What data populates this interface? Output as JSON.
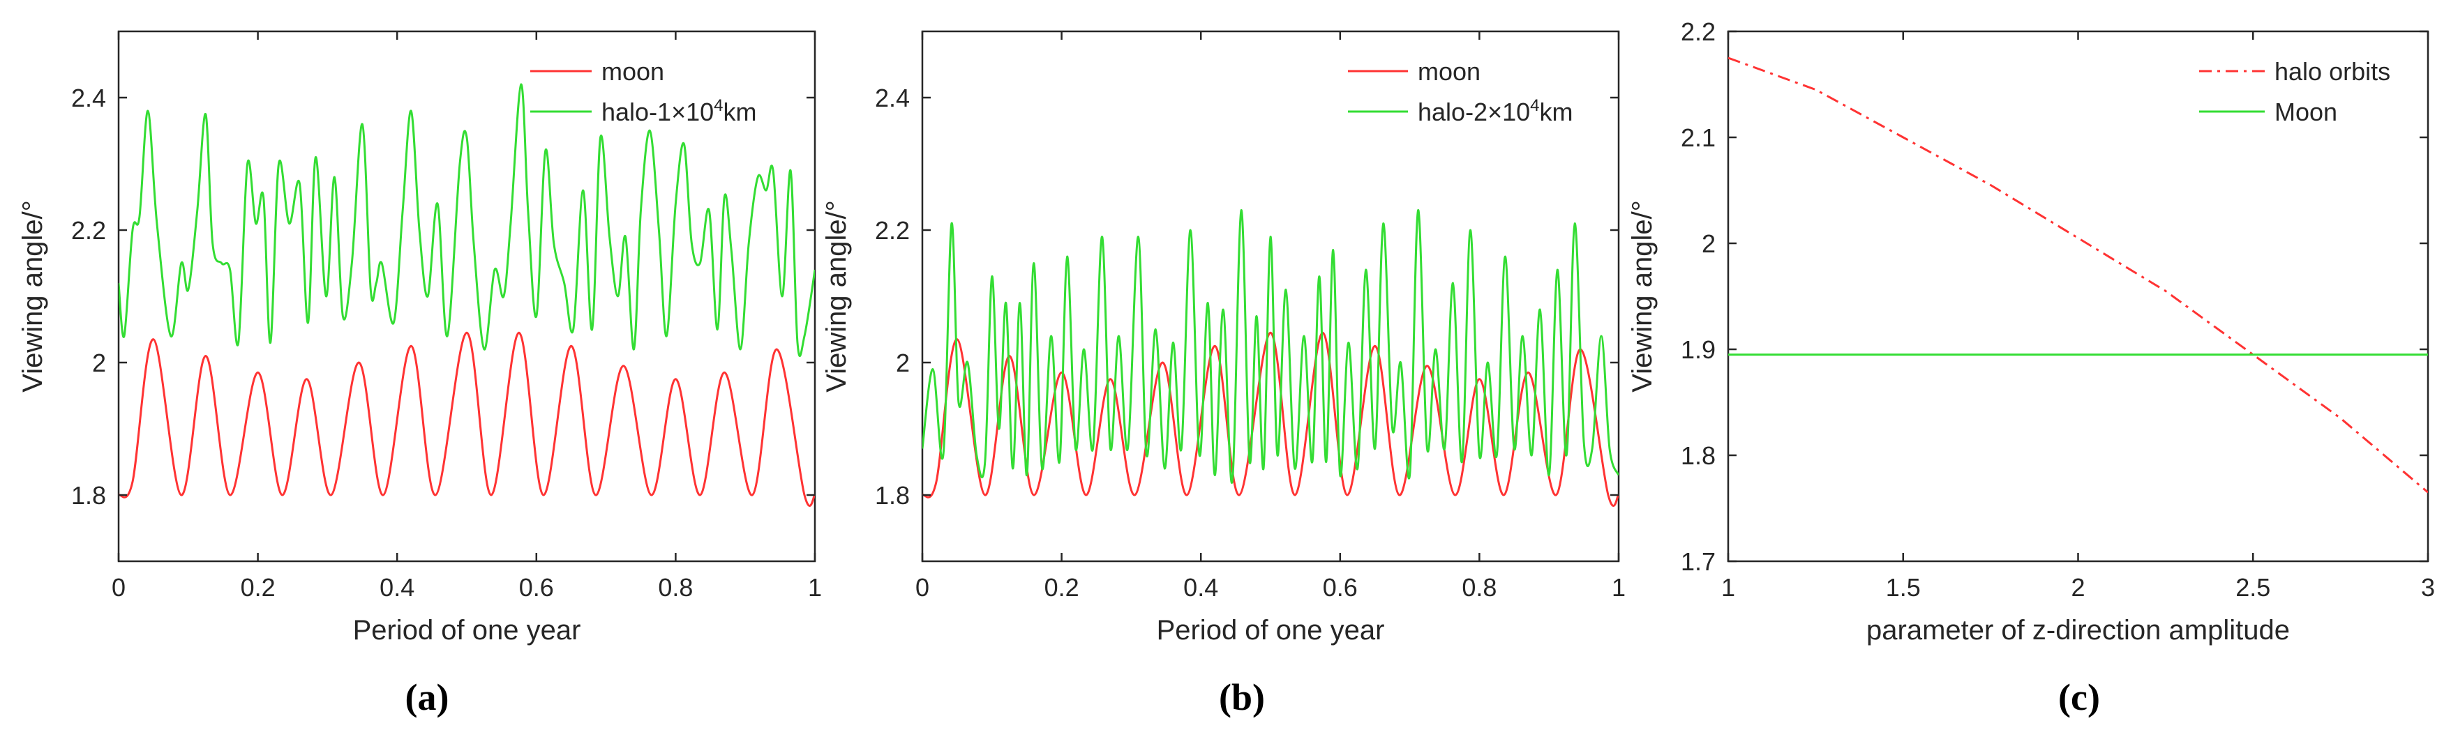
{
  "chart_data": [
    {
      "type": "line",
      "panel_label": "(a)",
      "title": "",
      "xlabel": "Period of one year",
      "ylabel": "Viewing angle/°",
      "xlim": [
        0,
        1
      ],
      "ylim": [
        1.7,
        2.5
      ],
      "xticks": [
        0,
        0.2,
        0.4,
        0.6,
        0.8,
        1
      ],
      "xtick_labels": [
        "0",
        "0.2",
        "0.4",
        "0.6",
        "0.8",
        "1"
      ],
      "yticks": [
        1.8,
        2,
        2.2,
        2.4
      ],
      "ytick_labels": [
        "1.8",
        "2",
        "2.2",
        "2.4"
      ],
      "legend_position": "top-right",
      "series": [
        {
          "name": "moon",
          "legend_label": "moon",
          "color": "#ff3333",
          "style": "solid",
          "x": [
            0,
            0.02,
            0.05,
            0.09,
            0.125,
            0.16,
            0.2,
            0.235,
            0.27,
            0.305,
            0.345,
            0.38,
            0.42,
            0.455,
            0.5,
            0.535,
            0.575,
            0.61,
            0.65,
            0.685,
            0.725,
            0.765,
            0.8,
            0.835,
            0.87,
            0.91,
            0.945,
            0.985,
            1
          ],
          "values": [
            1.8,
            1.82,
            2.035,
            1.8,
            2.01,
            1.8,
            1.985,
            1.8,
            1.975,
            1.8,
            2.0,
            1.8,
            2.025,
            1.8,
            2.045,
            1.8,
            2.045,
            1.8,
            2.025,
            1.8,
            1.995,
            1.8,
            1.975,
            1.8,
            1.985,
            1.8,
            2.02,
            1.8,
            1.8
          ]
        },
        {
          "name": "halo-1×10⁴km",
          "legend_label": "halo-1×10",
          "legend_superscript": "4",
          "legend_suffix": "km",
          "color": "#33dd33",
          "style": "solid",
          "x": [
            0,
            0.008,
            0.02,
            0.03,
            0.042,
            0.055,
            0.075,
            0.09,
            0.1,
            0.113,
            0.125,
            0.135,
            0.148,
            0.16,
            0.172,
            0.185,
            0.197,
            0.208,
            0.218,
            0.23,
            0.245,
            0.26,
            0.272,
            0.283,
            0.298,
            0.31,
            0.322,
            0.335,
            0.35,
            0.362,
            0.37,
            0.378,
            0.395,
            0.408,
            0.42,
            0.432,
            0.444,
            0.458,
            0.472,
            0.49,
            0.5,
            0.51,
            0.525,
            0.54,
            0.553,
            0.563,
            0.578,
            0.588,
            0.6,
            0.613,
            0.625,
            0.64,
            0.653,
            0.667,
            0.68,
            0.692,
            0.705,
            0.717,
            0.728,
            0.74,
            0.75,
            0.763,
            0.776,
            0.787,
            0.8,
            0.812,
            0.823,
            0.835,
            0.848,
            0.86,
            0.87,
            0.88,
            0.893,
            0.905,
            0.918,
            0.93,
            0.94,
            0.953,
            0.965,
            0.975,
            0.985,
            1
          ],
          "values": [
            2.12,
            2.04,
            2.2,
            2.22,
            2.38,
            2.21,
            2.04,
            2.15,
            2.11,
            2.23,
            2.375,
            2.18,
            2.15,
            2.14,
            2.03,
            2.3,
            2.21,
            2.25,
            2.03,
            2.3,
            2.21,
            2.27,
            2.06,
            2.31,
            2.1,
            2.28,
            2.07,
            2.15,
            2.36,
            2.11,
            2.12,
            2.15,
            2.06,
            2.23,
            2.38,
            2.2,
            2.1,
            2.24,
            2.04,
            2.3,
            2.34,
            2.18,
            2.02,
            2.14,
            2.1,
            2.21,
            2.42,
            2.23,
            2.07,
            2.32,
            2.18,
            2.12,
            2.05,
            2.26,
            2.05,
            2.34,
            2.19,
            2.1,
            2.19,
            2.02,
            2.23,
            2.35,
            2.2,
            2.04,
            2.24,
            2.33,
            2.18,
            2.15,
            2.23,
            2.05,
            2.25,
            2.17,
            2.02,
            2.18,
            2.28,
            2.26,
            2.29,
            2.1,
            2.29,
            2.03,
            2.04,
            2.14
          ]
        }
      ]
    },
    {
      "type": "line",
      "panel_label": "(b)",
      "title": "",
      "xlabel": "Period of one year",
      "ylabel": "Viewing angle/°",
      "xlim": [
        0,
        1
      ],
      "ylim": [
        1.7,
        2.5
      ],
      "xticks": [
        0,
        0.2,
        0.4,
        0.6,
        0.8,
        1
      ],
      "xtick_labels": [
        "0",
        "0.2",
        "0.4",
        "0.6",
        "0.8",
        "1"
      ],
      "yticks": [
        1.8,
        2,
        2.2,
        2.4
      ],
      "ytick_labels": [
        "1.8",
        "2",
        "2.2",
        "2.4"
      ],
      "legend_position": "top-right",
      "series": [
        {
          "name": "moon",
          "legend_label": "moon",
          "color": "#ff3333",
          "style": "solid",
          "x": [
            0,
            0.02,
            0.05,
            0.09,
            0.125,
            0.16,
            0.2,
            0.235,
            0.27,
            0.305,
            0.345,
            0.38,
            0.42,
            0.455,
            0.5,
            0.535,
            0.575,
            0.61,
            0.65,
            0.685,
            0.725,
            0.765,
            0.8,
            0.835,
            0.87,
            0.91,
            0.945,
            0.985,
            1
          ],
          "values": [
            1.8,
            1.82,
            2.035,
            1.8,
            2.01,
            1.8,
            1.985,
            1.8,
            1.975,
            1.8,
            2.0,
            1.8,
            2.025,
            1.8,
            2.045,
            1.8,
            2.045,
            1.8,
            2.025,
            1.8,
            1.995,
            1.8,
            1.975,
            1.8,
            1.985,
            1.8,
            2.02,
            1.8,
            1.8
          ]
        },
        {
          "name": "halo-2×10⁴km",
          "legend_label": "halo-2×10",
          "legend_superscript": "4",
          "legend_suffix": "km",
          "color": "#33dd33",
          "style": "solid",
          "x": [
            0,
            0.015,
            0.03,
            0.042,
            0.052,
            0.065,
            0.078,
            0.09,
            0.1,
            0.11,
            0.12,
            0.13,
            0.14,
            0.15,
            0.16,
            0.172,
            0.185,
            0.197,
            0.208,
            0.22,
            0.232,
            0.245,
            0.258,
            0.27,
            0.282,
            0.295,
            0.31,
            0.322,
            0.335,
            0.348,
            0.36,
            0.372,
            0.385,
            0.398,
            0.41,
            0.42,
            0.432,
            0.445,
            0.458,
            0.47,
            0.48,
            0.49,
            0.5,
            0.51,
            0.522,
            0.535,
            0.548,
            0.56,
            0.57,
            0.58,
            0.59,
            0.6,
            0.612,
            0.625,
            0.637,
            0.65,
            0.662,
            0.675,
            0.687,
            0.7,
            0.712,
            0.725,
            0.737,
            0.75,
            0.762,
            0.775,
            0.787,
            0.8,
            0.812,
            0.825,
            0.837,
            0.85,
            0.862,
            0.875,
            0.887,
            0.9,
            0.912,
            0.925,
            0.937,
            0.95,
            0.962,
            0.975,
            0.987,
            1
          ],
          "values": [
            1.87,
            1.99,
            1.86,
            2.21,
            1.94,
            2.0,
            1.86,
            1.85,
            2.13,
            1.9,
            2.09,
            1.84,
            2.09,
            1.83,
            2.15,
            1.84,
            2.04,
            1.85,
            2.16,
            1.87,
            2.02,
            1.87,
            2.19,
            1.87,
            2.04,
            1.87,
            2.19,
            1.86,
            2.05,
            1.84,
            2.03,
            1.87,
            2.2,
            1.86,
            2.09,
            1.83,
            2.08,
            1.82,
            2.23,
            1.85,
            2.07,
            1.84,
            2.19,
            1.86,
            2.11,
            1.84,
            2.04,
            1.85,
            2.13,
            1.85,
            2.17,
            1.83,
            2.03,
            1.84,
            2.14,
            1.87,
            2.21,
            1.9,
            2.0,
            1.83,
            2.23,
            1.87,
            2.02,
            1.87,
            2.12,
            1.85,
            2.2,
            1.86,
            2.0,
            1.86,
            2.16,
            1.87,
            2.04,
            1.86,
            2.08,
            1.83,
            2.14,
            1.86,
            2.21,
            1.88,
            1.87,
            2.04,
            1.87,
            1.83
          ]
        }
      ]
    },
    {
      "type": "line",
      "panel_label": "(c)",
      "title": "",
      "xlabel": "parameter of z-direction amplitude",
      "ylabel": "Viewing angle/°",
      "xlim": [
        1,
        3
      ],
      "ylim": [
        1.7,
        2.2
      ],
      "xticks": [
        1,
        1.5,
        2,
        2.5,
        3
      ],
      "xtick_labels": [
        "1",
        "1.5",
        "2",
        "2.5",
        "3"
      ],
      "yticks": [
        1.7,
        1.8,
        1.9,
        2,
        2.1,
        2.2
      ],
      "ytick_labels": [
        "1.7",
        "1.8",
        "1.9",
        "2",
        "2.1",
        "2.2"
      ],
      "legend_position": "top-right",
      "series": [
        {
          "name": "halo orbits",
          "legend_label": "halo orbits",
          "color": "#ff3333",
          "style": "dashdot",
          "x": [
            1,
            1.25,
            1.5,
            1.75,
            2,
            2.25,
            2.5,
            2.75,
            3
          ],
          "values": [
            2.175,
            2.145,
            2.1,
            2.055,
            2.005,
            1.955,
            1.895,
            1.835,
            1.765
          ]
        },
        {
          "name": "Moon",
          "legend_label": "Moon",
          "color": "#33dd33",
          "style": "solid",
          "x": [
            1,
            3
          ],
          "values": [
            1.895,
            1.895
          ]
        }
      ]
    }
  ]
}
